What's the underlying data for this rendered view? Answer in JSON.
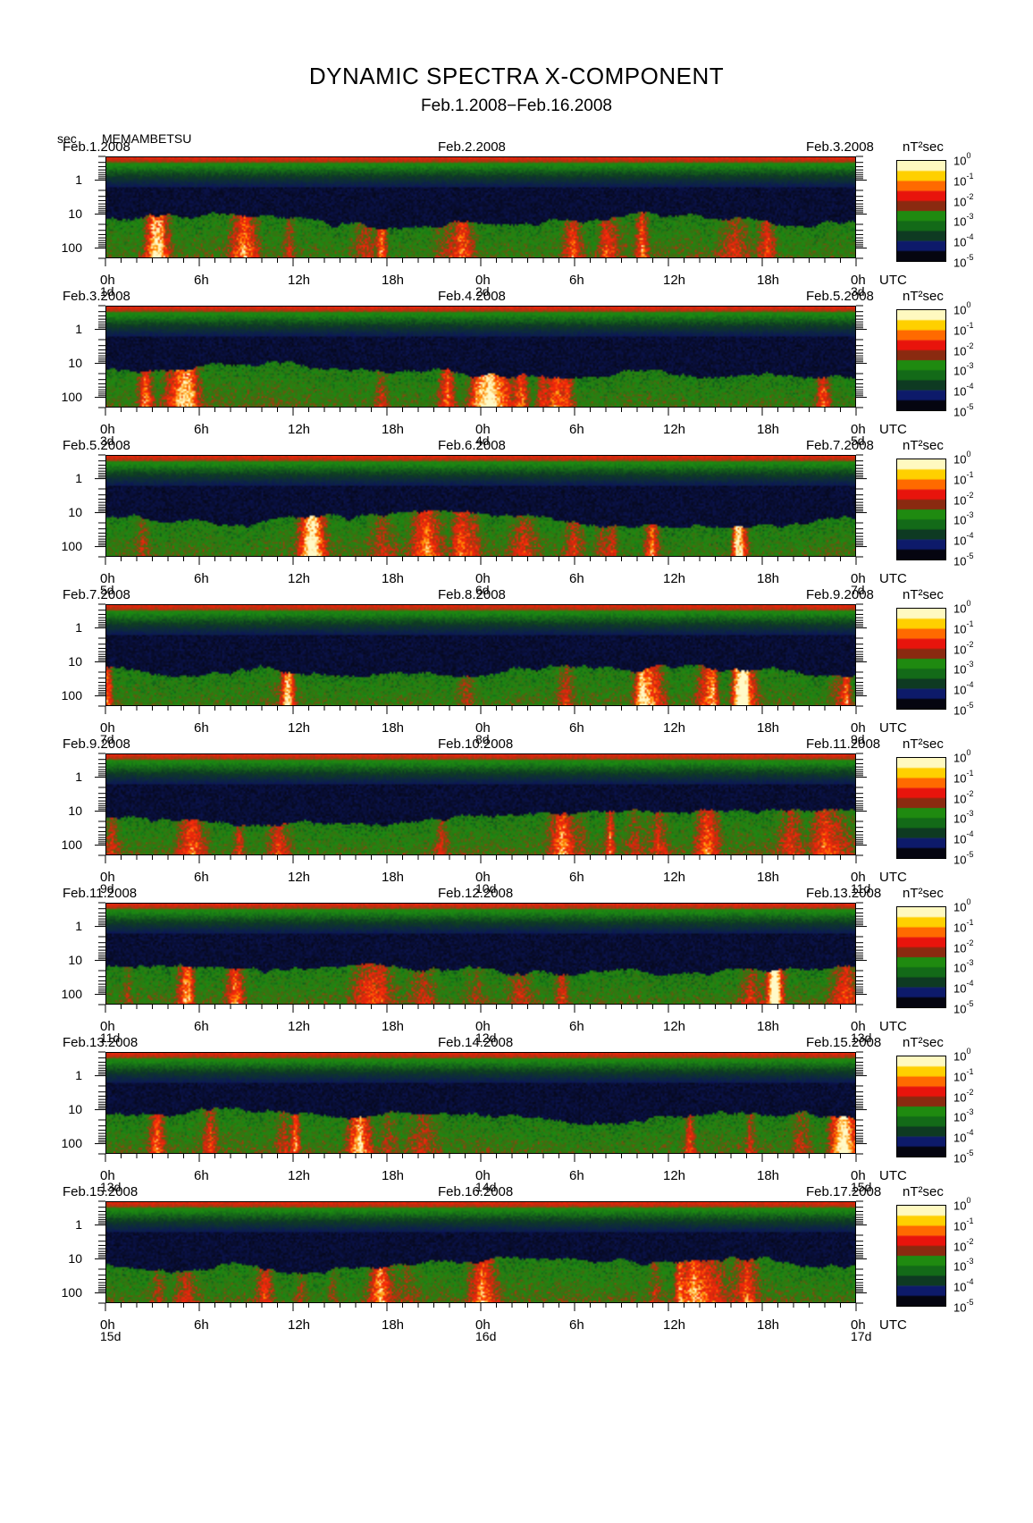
{
  "chart_data": {
    "type": "heatmap",
    "title": "DYNAMIC SPECTRA X-COMPONENT",
    "subtitle": "Feb.1.2008−Feb.16.2008",
    "station": "MEMAMBETSU",
    "y_unit": "sec",
    "y_scale": "log",
    "y_ticks": [
      "1",
      "10",
      "100"
    ],
    "y_range_sec": [
      0.2,
      200
    ],
    "x_tick_labels": [
      "0h",
      "6h",
      "12h",
      "18h",
      "0h",
      "6h",
      "12h",
      "18h",
      "0h"
    ],
    "x_unit_label": "UTC",
    "colorbar": {
      "unit": "nT²sec",
      "scale": "log",
      "ticks": [
        {
          "base": "10",
          "exp": "0"
        },
        {
          "base": "10",
          "exp": "-1"
        },
        {
          "base": "10",
          "exp": "-2"
        },
        {
          "base": "10",
          "exp": "-3"
        },
        {
          "base": "10",
          "exp": "-4"
        },
        {
          "base": "10",
          "exp": "-5"
        }
      ],
      "colors": [
        "#fff9c0",
        "#ffd000",
        "#ff6a00",
        "#e8140c",
        "#8a2a10",
        "#1f8a10",
        "#136a18",
        "#0e3a22",
        "#0d1a6a",
        "#050510"
      ]
    },
    "panels": [
      {
        "date_left": "Feb.1.2008",
        "date_mid": "Feb.2.2008",
        "date_right": "Feb.3.2008",
        "day_labels": [
          "1d",
          "2d",
          "3d"
        ]
      },
      {
        "date_left": "Feb.3.2008",
        "date_mid": "Feb.4.2008",
        "date_right": "Feb.5.2008",
        "day_labels": [
          "3d",
          "4d",
          "5d"
        ]
      },
      {
        "date_left": "Feb.5.2008",
        "date_mid": "Feb.6.2008",
        "date_right": "Feb.7.2008",
        "day_labels": [
          "5d",
          "6d",
          "7d"
        ]
      },
      {
        "date_left": "Feb.7.2008",
        "date_mid": "Feb.8.2008",
        "date_right": "Feb.9.2008",
        "day_labels": [
          "7d",
          "8d",
          "9d"
        ]
      },
      {
        "date_left": "Feb.9.2008",
        "date_mid": "Feb.10.2008",
        "date_right": "Feb.11.2008",
        "day_labels": [
          "9d",
          "10d",
          "11d"
        ]
      },
      {
        "date_left": "Feb.11.2008",
        "date_mid": "Feb.12.2008",
        "date_right": "Feb.13.2008",
        "day_labels": [
          "11d",
          "12d",
          "13d"
        ]
      },
      {
        "date_left": "Feb.13.2008",
        "date_mid": "Feb.14.2008",
        "date_right": "Feb.15.2008",
        "day_labels": [
          "13d",
          "14d",
          "15d"
        ]
      },
      {
        "date_left": "Feb.15.2008",
        "date_mid": "Feb.16.2008",
        "date_right": "Feb.17.2008",
        "day_labels": [
          "15d",
          "16d",
          "17d"
        ]
      }
    ]
  }
}
